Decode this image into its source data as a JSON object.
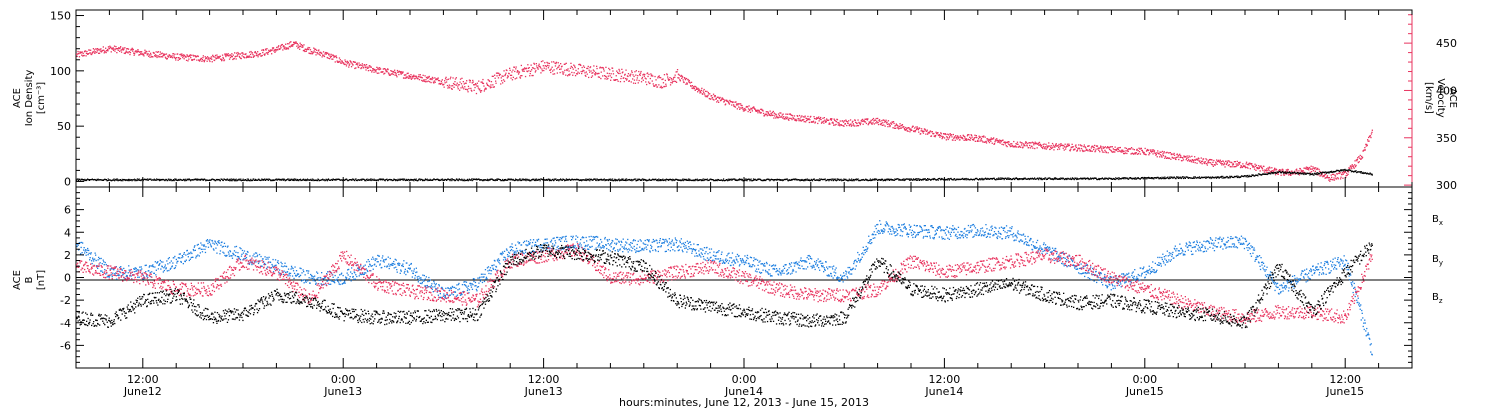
{
  "chart_data": [
    {
      "type": "scatter",
      "panel": "top",
      "ylabel_left": [
        "ACE",
        "Ion Density",
        "[cm⁻³]"
      ],
      "ylabel_right": [
        "ACE",
        "Velocity",
        "[km/s]"
      ],
      "ylim_left": [
        -5,
        155
      ],
      "yticks_left": [
        0,
        50,
        100,
        150
      ],
      "ylim_right": [
        298,
        485
      ],
      "yticks_right": [
        300,
        350,
        400,
        450
      ],
      "series": [
        {
          "name": "Velocity",
          "axis": "right",
          "color": "#e8335e",
          "x_hours": [
            0,
            2,
            4,
            6,
            8,
            9,
            10,
            11,
            12,
            13,
            14,
            15,
            16,
            18,
            20,
            22,
            24,
            26,
            28,
            30,
            32,
            34,
            35,
            36,
            37,
            38,
            40,
            42,
            44,
            46,
            48,
            50,
            52,
            54,
            56,
            58,
            60,
            62,
            64,
            66,
            68,
            70,
            71,
            72,
            73,
            74,
            75,
            76,
            77,
            77.6
          ],
          "y": [
            438,
            445,
            440,
            436,
            434,
            436,
            438,
            440,
            444,
            450,
            443,
            438,
            430,
            422,
            416,
            410,
            404,
            418,
            426,
            422,
            418,
            414,
            410,
            416,
            404,
            394,
            382,
            374,
            370,
            366,
            368,
            360,
            352,
            350,
            344,
            342,
            340,
            338,
            336,
            330,
            324,
            322,
            318,
            314,
            314,
            318,
            308,
            312,
            332,
            358
          ]
        },
        {
          "name": "Ion Density",
          "axis": "left",
          "color": "#000000",
          "x_hours": [
            0,
            8,
            16,
            24,
            32,
            40,
            48,
            56,
            62,
            66,
            68,
            70,
            72,
            74,
            76,
            77.6
          ],
          "y": [
            2,
            2,
            2,
            2,
            2,
            2,
            2,
            3,
            3,
            4,
            4,
            5,
            9,
            7,
            11,
            7
          ]
        }
      ]
    },
    {
      "type": "scatter",
      "panel": "bottom",
      "ylabel": [
        "ACE",
        "B",
        "[nT]"
      ],
      "ylim": [
        -8,
        8
      ],
      "yticks": [
        -6,
        -4,
        -2,
        0,
        2,
        4,
        6
      ],
      "legend": [
        "Bx",
        "By",
        "Bz"
      ],
      "series": [
        {
          "name": "Bx",
          "color": "#000000",
          "x_hours": [
            0,
            2,
            4,
            6,
            8,
            10,
            12,
            14,
            16,
            18,
            20,
            22,
            24,
            26,
            28,
            30,
            32,
            34,
            36,
            38,
            40,
            42,
            44,
            46,
            48,
            50,
            52,
            54,
            56,
            58,
            60,
            62,
            64,
            66,
            68,
            70,
            72,
            74,
            76,
            77.6
          ],
          "y": [
            -3.5,
            -3.8,
            -2.0,
            -1.5,
            -3.5,
            -3.2,
            -1.5,
            -2.0,
            -3.2,
            -3.5,
            -3.5,
            -3.3,
            -3.2,
            1.5,
            2.5,
            2.2,
            1.8,
            1.0,
            -2.0,
            -2.5,
            -3.0,
            -3.5,
            -3.8,
            -3.5,
            1.5,
            -1.0,
            -1.5,
            -1.0,
            -0.5,
            -1.5,
            -2.2,
            -2.0,
            -2.5,
            -3.0,
            -3.3,
            -4.0,
            1.0,
            -3.0,
            0.5,
            3.0
          ]
        },
        {
          "name": "By",
          "color": "#1e7fe0",
          "x_hours": [
            0,
            2,
            4,
            6,
            8,
            10,
            12,
            14,
            16,
            18,
            20,
            22,
            24,
            26,
            28,
            30,
            32,
            34,
            36,
            38,
            40,
            42,
            44,
            46,
            48,
            50,
            52,
            54,
            56,
            58,
            60,
            62,
            64,
            66,
            68,
            70,
            72,
            74,
            76,
            77.6
          ],
          "y": [
            3.0,
            0.5,
            0.5,
            1.5,
            3.0,
            2.0,
            1.0,
            0.0,
            0.0,
            1.5,
            0.8,
            -1.5,
            -0.5,
            2.5,
            3.0,
            3.2,
            3.0,
            2.8,
            3.0,
            2.0,
            1.5,
            0.5,
            1.5,
            0.0,
            4.5,
            4.2,
            4.0,
            4.2,
            4.0,
            2.5,
            1.0,
            -0.5,
            0.5,
            2.5,
            3.0,
            3.2,
            -1.0,
            0.5,
            1.5,
            -6.5
          ]
        },
        {
          "name": "Bz",
          "color": "#e8335e",
          "x_hours": [
            0,
            2,
            4,
            6,
            8,
            10,
            12,
            14,
            16,
            18,
            20,
            22,
            24,
            26,
            28,
            30,
            32,
            34,
            36,
            38,
            40,
            42,
            44,
            46,
            48,
            50,
            52,
            54,
            56,
            58,
            60,
            62,
            64,
            66,
            68,
            70,
            72,
            74,
            76,
            77.6
          ],
          "y": [
            1.0,
            0.5,
            0.0,
            -1.0,
            -1.0,
            1.5,
            0.5,
            -2.0,
            2.0,
            -0.5,
            -1.2,
            -1.5,
            -2.0,
            1.5,
            2.0,
            2.5,
            0.0,
            0.0,
            0.5,
            1.0,
            0.0,
            -1.0,
            -1.5,
            -1.5,
            -1.0,
            1.5,
            0.5,
            1.0,
            1.5,
            2.0,
            1.5,
            0.0,
            -1.0,
            -2.0,
            -3.0,
            -3.5,
            -3.0,
            -3.0,
            -3.5,
            2.0
          ]
        }
      ]
    }
  ],
  "x_axis": {
    "xlim_hours": [
      0,
      80
    ],
    "ticks": [
      {
        "hour": 4,
        "time": "12:00",
        "date": "June12"
      },
      {
        "hour": 16,
        "time": "0:00",
        "date": "June13"
      },
      {
        "hour": 28,
        "time": "12:00",
        "date": "June13"
      },
      {
        "hour": 40,
        "time": "0:00",
        "date": "June14"
      },
      {
        "hour": 52,
        "time": "12:00",
        "date": "June14"
      },
      {
        "hour": 64,
        "time": "0:00",
        "date": "June15"
      },
      {
        "hour": 76,
        "time": "12:00",
        "date": "June15"
      }
    ],
    "title": "hours:minutes, June 12, 2013 - June 15, 2013"
  },
  "legend_labels": {
    "bx": "B",
    "bx_sub": "x",
    "by": "B",
    "by_sub": "y",
    "bz": "B",
    "bz_sub": "z"
  }
}
